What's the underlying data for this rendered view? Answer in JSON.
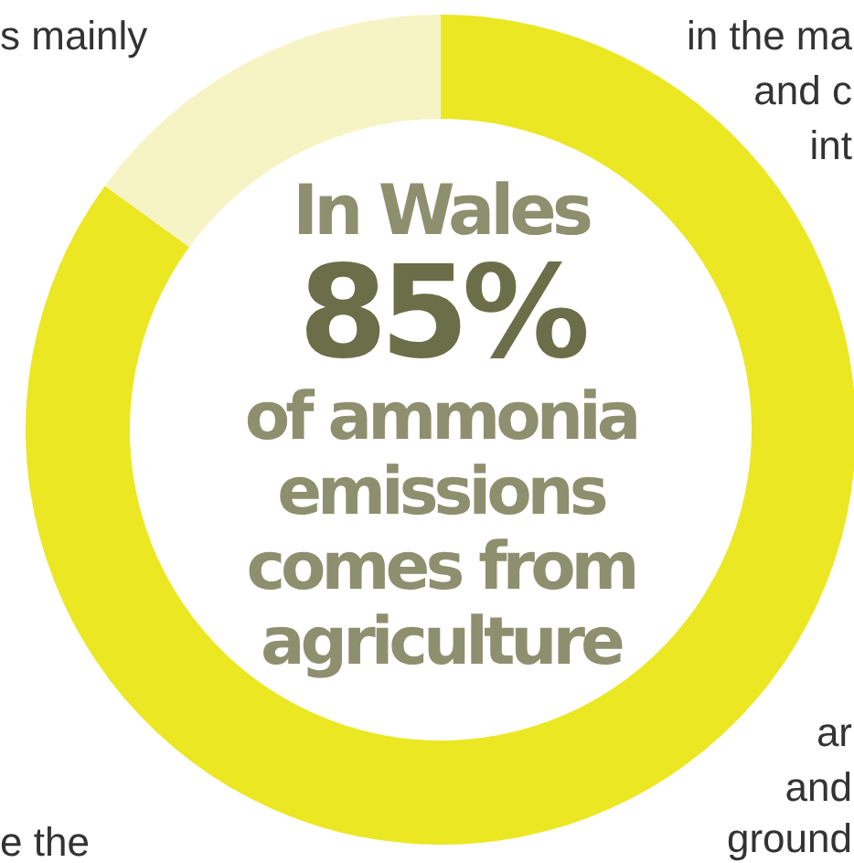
{
  "chart_data": {
    "type": "donut",
    "title": "In Wales",
    "subtitle": "of ammonia emissions comes from agriculture",
    "categories": [
      null,
      null
    ],
    "values": [
      85,
      15
    ],
    "colors": [
      "#ebe723",
      "#f6f4c4"
    ],
    "annotations": [
      "85%",
      "s mainly",
      "in the ma",
      "and c",
      "int",
      "ar",
      "and",
      "ground",
      "e the"
    ]
  }
}
